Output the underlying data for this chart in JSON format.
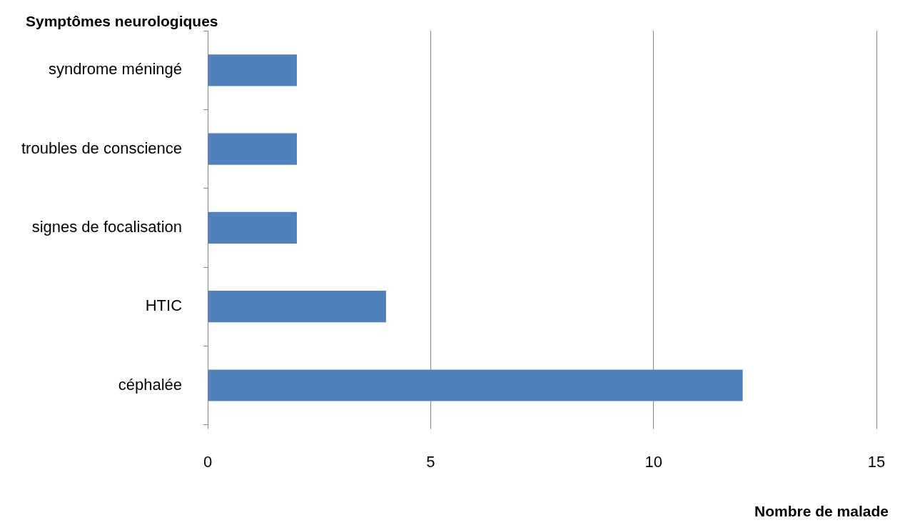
{
  "chart_data": {
    "type": "bar",
    "orientation": "horizontal",
    "ylabel": "Symptômes neurologiques",
    "xlabel": "Nombre de malade",
    "categories": [
      "syndrome méningé",
      "troubles de conscience",
      "signes de focalisation",
      "HTIC",
      "céphalée"
    ],
    "values": [
      2,
      2,
      2,
      4,
      12
    ],
    "color": "#4f81bd",
    "xlim": [
      0,
      15
    ],
    "xticks": [
      0,
      5,
      10,
      15
    ],
    "grid": "x"
  }
}
